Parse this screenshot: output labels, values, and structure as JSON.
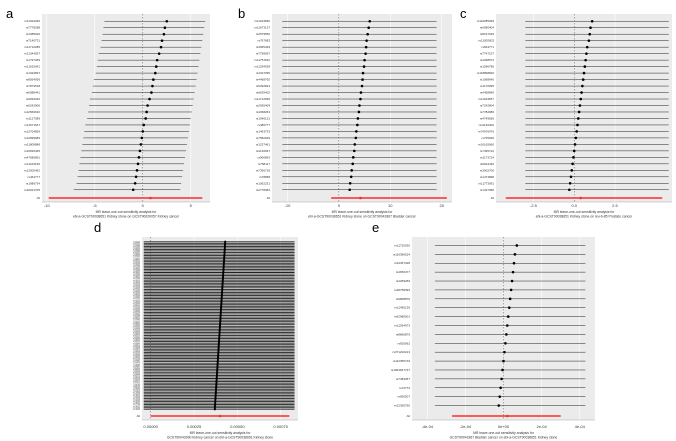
{
  "chart_data": [
    {
      "type": "forest",
      "panel": "a",
      "xlabel": [
        "MR leave-one-out sensitivity analysis for",
        "ebi-a-GCST90038651 Kidney stone on GCST90020057 Kidney cancer"
      ],
      "xticks": [
        "-10",
        "-5",
        "0",
        "5"
      ],
      "xlim": [
        -10.5,
        7
      ],
      "ref": 0,
      "labels": [
        "rs11024046",
        "rs7778288",
        "rs1385640",
        "rs7140731",
        "rs11712286",
        "rs11044597",
        "rs1797259",
        "rs11625041",
        "rs1322837",
        "rs8564936",
        "rs7873518",
        "rs6088441",
        "rs9094032",
        "rs6242906",
        "rs12569632",
        "rs1127389",
        "rs11671547",
        "rs12704859",
        "rs12895983",
        "rs11809888",
        "rs16836465",
        "rs47680891",
        "rs11615150",
        "rs12505462",
        "rs464777",
        "rs1986734",
        "rs10021705"
      ],
      "values": [
        2.5,
        2.3,
        2.2,
        2.0,
        1.9,
        1.7,
        1.5,
        1.4,
        1.3,
        1.1,
        1.0,
        0.9,
        0.7,
        0.5,
        0.4,
        0.3,
        0.1,
        0.0,
        -0.1,
        -0.2,
        -0.3,
        -0.4,
        -0.5,
        -0.6,
        -0.7,
        -0.8,
        -1.0
      ],
      "lower": [
        -4,
        -4.1,
        -4.2,
        -4.3,
        -4.4,
        -4.6,
        -4.7,
        -4.8,
        -4.9,
        -5.1,
        -5.2,
        -5.3,
        -5.5,
        -5.6,
        -5.7,
        -5.8,
        -6,
        -6.1,
        -6.2,
        -6.3,
        -6.4,
        -6.5,
        -6.6,
        -6.7,
        -6.8,
        -6.9,
        -7.2
      ],
      "upper": [
        6.5,
        6.4,
        6.3,
        6.2,
        6.1,
        6,
        5.9,
        5.8,
        5.7,
        5.6,
        5.5,
        5.4,
        5.3,
        5.2,
        5.1,
        5,
        4.9,
        4.8,
        4.7,
        4.6,
        4.5,
        4.4,
        4.3,
        4.2,
        4.1,
        4,
        3.9
      ],
      "overall": {
        "label": "All",
        "value": 0.8,
        "lower": -9.8,
        "upper": 6.2
      }
    },
    {
      "type": "forest",
      "panel": "b",
      "xlabel": [
        "MR leave-one-out sensitivity analysis for",
        "ebi-a-GCST90038651 Kidney stone on GCST90041867 Bladder cancer"
      ],
      "xticks": [
        "-10",
        "0",
        "10",
        "20"
      ],
      "xlim": [
        -13,
        22
      ],
      "ref": 0,
      "labels": [
        "rs11023590",
        "rs11673137",
        "rs2579550",
        "rs767683",
        "rs4955449",
        "rs7758097",
        "rs11751532",
        "rs11294538",
        "rs4327395",
        "rs4468765",
        "rs6392824",
        "rs6639402",
        "rs11712996",
        "rs2695409",
        "rs4368263",
        "rs1046131",
        "rs486777",
        "rs1463733",
        "rs7582929",
        "rs1237461",
        "rs4140667",
        "rs906893",
        "rs758117",
        "rs7356718",
        "rs78958",
        "rs1062231",
        "rs2778384"
      ],
      "values": [
        6.0,
        5.8,
        5.6,
        5.4,
        5.3,
        5.2,
        5.0,
        4.9,
        4.7,
        4.6,
        4.5,
        4.3,
        4.2,
        4.0,
        3.9,
        3.7,
        3.6,
        3.4,
        3.3,
        3.1,
        3.0,
        2.8,
        2.7,
        2.5,
        2.4,
        2.2,
        2.1
      ],
      "lower": [
        -11,
        -11,
        -11,
        -11,
        -11,
        -11,
        -11,
        -11,
        -11,
        -11,
        -11,
        -11,
        -11,
        -11,
        -11,
        -11,
        -11,
        -11,
        -11,
        -11,
        -11,
        -11,
        -11,
        -11,
        -11,
        -11,
        -11
      ],
      "upper": [
        19,
        19,
        19,
        19,
        19,
        19,
        19,
        19,
        19,
        19,
        19,
        19,
        19,
        19,
        19,
        19,
        19,
        19,
        19,
        19,
        19,
        19,
        19,
        19,
        19,
        19,
        19
      ],
      "overall": {
        "label": "All",
        "value": 4.2,
        "lower": -1.5,
        "upper": 21
      }
    },
    {
      "type": "forest",
      "panel": "c",
      "xlabel": [
        "MR leave-one-out sensitivity analysis for",
        "ebi-a-GCST90038651 Kidney stone on ieu-b-85 Prostate cancer"
      ],
      "xticks": [
        "-2.5",
        "0.0",
        "2.5"
      ],
      "xlim": [
        -4.8,
        6
      ],
      "ref": 0,
      "labels": [
        "rs116285069",
        "rs6080404",
        "rs8157049",
        "rs11005003",
        "rs664771",
        "rs7747227",
        "rs4398572",
        "rs1096786",
        "rs118898820",
        "rs1068640",
        "rs1170095",
        "rs4458840",
        "rs11023657",
        "rs7242804",
        "rs7782986",
        "rs4749656",
        "rs11146402",
        "rs74970976",
        "rs765930",
        "rs16165660",
        "rs7395722",
        "rs1173724",
        "rs6924440",
        "rs3002706",
        "rs1474898",
        "rs11773091",
        "rs1437380"
      ],
      "values": [
        1.1,
        1.0,
        0.95,
        0.9,
        0.8,
        0.75,
        0.7,
        0.65,
        0.6,
        0.55,
        0.5,
        0.45,
        0.4,
        0.35,
        0.3,
        0.25,
        0.2,
        0.15,
        0.1,
        0.05,
        0.0,
        -0.05,
        -0.1,
        -0.15,
        -0.2,
        -0.25,
        -0.3
      ],
      "lower": [
        -3,
        -3,
        -3,
        -3,
        -3,
        -3,
        -3,
        -3,
        -3,
        -3,
        -3,
        -3,
        -3,
        -3,
        -3,
        -3,
        -3,
        -3,
        -3,
        -3,
        -3,
        -3,
        -3,
        -3,
        -3,
        -3,
        -3
      ],
      "upper": [
        5.8,
        5.8,
        5.8,
        5.8,
        5.8,
        5.8,
        5.8,
        5.8,
        5.8,
        5.8,
        5.8,
        5.8,
        5.8,
        5.8,
        5.8,
        5.8,
        5.8,
        5.8,
        5.8,
        5.8,
        5.8,
        5.8,
        5.8,
        5.8,
        5.8,
        5.8,
        5.8
      ],
      "overall": {
        "label": "All",
        "value": 0.4,
        "lower": -4.2,
        "upper": 5.4
      }
    },
    {
      "type": "forest",
      "panel": "d",
      "xlabel": [
        "MR leave-one-out sensitivity analysis for",
        "GCST90043930 Kidney cancer on ebi-a-GCST90038651 Kidney stone"
      ],
      "xticks": [
        "0.00000",
        "0.00025",
        "0.00050",
        "0.00075"
      ],
      "xlim": [
        -5e-05,
        0.00085
      ],
      "ref": 0,
      "n_rows": 110,
      "value_top": 0.00043,
      "value_bottom": 0.00037,
      "lower": -4e-05,
      "upper": 0.00083,
      "overall": {
        "label": "All",
        "value": 0.0004,
        "lower": 0.0,
        "upper": 0.0008
      }
    },
    {
      "type": "forest",
      "panel": "e",
      "xlabel": [
        "MR leave-one-out sensitivity analysis for",
        "GCST90041867 Bladder cancer on ebi-a-GCST90038651 Kidney stone"
      ],
      "xticks": [
        "-4e-04",
        "-2e-04",
        "0e+00",
        "2e-04",
        "4e-04"
      ],
      "xlim": [
        -0.00048,
        0.00048
      ],
      "ref": 0,
      "labels": [
        "rs11725035",
        "rs116386524",
        "rs34457328",
        "rs4656477",
        "rs4259259",
        "rs28758093",
        "rs6808876",
        "rs11450136",
        "rs62980001",
        "rs11054973",
        "rs8866879",
        "rs920062",
        "rs371202213",
        "rs112355719",
        "rs1822847737",
        "rs7484357",
        "rs72772",
        "rs650507",
        "rs12360750"
      ],
      "values": [
        7e-05,
        6e-05,
        5.5e-05,
        5e-05,
        4.5e-05,
        4e-05,
        3.5e-05,
        3e-05,
        2.5e-05,
        2e-05,
        1.5e-05,
        1e-05,
        5e-06,
        0.0,
        -5e-06,
        -1e-05,
        -1.5e-05,
        -2e-05,
        -2.5e-05
      ],
      "lower": [
        -0.00036,
        -0.00036,
        -0.00036,
        -0.00036,
        -0.00036,
        -0.00036,
        -0.00036,
        -0.00036,
        -0.00036,
        -0.00036,
        -0.00036,
        -0.00036,
        -0.00036,
        -0.00036,
        -0.00036,
        -0.00036,
        -0.00036,
        -0.00036,
        -0.00036
      ],
      "upper": [
        0.00043,
        0.00043,
        0.00043,
        0.00043,
        0.00043,
        0.00043,
        0.00043,
        0.00043,
        0.00043,
        0.00043,
        0.00043,
        0.00043,
        0.00043,
        0.00043,
        0.00043,
        0.00043,
        0.00043,
        0.00043,
        0.00043
      ],
      "overall": {
        "label": "All",
        "value": 2e-05,
        "lower": -0.00027,
        "upper": 0.0003
      }
    }
  ],
  "colors": {
    "panel_bg": "#ebebeb",
    "grid": "#ffffff",
    "ci": "#222222",
    "overall": "#ff2a2a",
    "ref": "#555555"
  }
}
